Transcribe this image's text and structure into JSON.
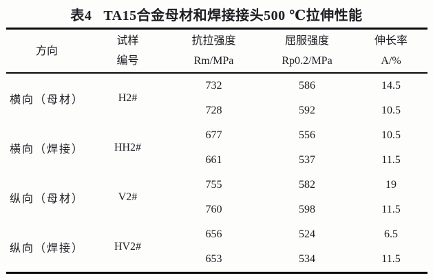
{
  "page": {
    "background": "#fdfdfc",
    "text_color": "#1d1d22",
    "rule_color": "#0a0a0a"
  },
  "table": {
    "title": {
      "label": "表4",
      "text": "TA15合金母材和焊接接头500 ℃拉伸性能"
    },
    "columns": [
      {
        "line1": "方向",
        "line2": ""
      },
      {
        "line1": "试样",
        "line2": "编号"
      },
      {
        "line1": "抗拉强度",
        "line2": "Rm/MPa"
      },
      {
        "line1": "屈服强度",
        "line2": "Rp0.2/MPa"
      },
      {
        "line1": "伸长率",
        "line2": "A/%"
      }
    ],
    "groups": [
      {
        "direction": "横向（母材）",
        "specimen": "H2#",
        "rows": [
          {
            "rm": "732",
            "rp": "586",
            "a": "14.5"
          },
          {
            "rm": "728",
            "rp": "592",
            "a": "10.5"
          }
        ]
      },
      {
        "direction": "横向（焊接）",
        "specimen": "HH2#",
        "rows": [
          {
            "rm": "677",
            "rp": "556",
            "a": "10.5"
          },
          {
            "rm": "661",
            "rp": "537",
            "a": "11.5"
          }
        ]
      },
      {
        "direction": "纵向（母材）",
        "specimen": "V2#",
        "rows": [
          {
            "rm": "755",
            "rp": "582",
            "a": "19"
          },
          {
            "rm": "760",
            "rp": "598",
            "a": "11.5"
          }
        ]
      },
      {
        "direction": "纵向（焊接）",
        "specimen": "HV2#",
        "rows": [
          {
            "rm": "656",
            "rp": "524",
            "a": "6.5"
          },
          {
            "rm": "653",
            "rp": "534",
            "a": "11.5"
          }
        ]
      }
    ]
  }
}
